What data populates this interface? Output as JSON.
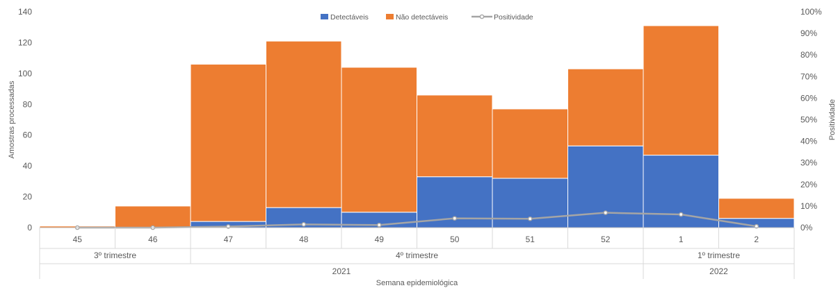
{
  "chart_data": {
    "type": "bar",
    "stacked": true,
    "categories": [
      "45",
      "46",
      "47",
      "48",
      "49",
      "50",
      "51",
      "52",
      "1",
      "2"
    ],
    "series": [
      {
        "name": "Detectáveis",
        "color": "#4472C4",
        "values": [
          0,
          0,
          4,
          13,
          10,
          33,
          32,
          53,
          47,
          6
        ]
      },
      {
        "name": "Não detectáveis",
        "color": "#ED7D31",
        "values": [
          1,
          14,
          102,
          108,
          94,
          53,
          45,
          50,
          84,
          13
        ]
      },
      {
        "name": "Positividade",
        "type": "line",
        "axis": "y2",
        "color": "#A5A5A5",
        "values": [
          0,
          0,
          0.5,
          1.5,
          1.2,
          4.3,
          4.1,
          6.9,
          6.1,
          0.6
        ]
      }
    ],
    "ylabel": "Amostras processadas",
    "ylim": [
      0,
      140
    ],
    "yticks": [
      0,
      20,
      40,
      60,
      80,
      100,
      120,
      140
    ],
    "y2label": "Positividade",
    "y2lim": [
      0,
      100
    ],
    "y2ticks": [
      "0%",
      "10%",
      "20%",
      "30%",
      "40%",
      "50%",
      "60%",
      "70%",
      "80%",
      "90%",
      "100%"
    ],
    "xlabel": "Semana epidemiológica",
    "quarters": [
      {
        "label": "3º trimestre",
        "start": 0,
        "end": 1
      },
      {
        "label": "4º trimestre",
        "start": 2,
        "end": 7
      },
      {
        "label": "1º trimestre",
        "start": 8,
        "end": 9
      }
    ],
    "years": [
      {
        "label": "2021",
        "start": 0,
        "end": 7
      },
      {
        "label": "2022",
        "start": 8,
        "end": 9
      }
    ],
    "legend_position": "top",
    "grid": false
  }
}
